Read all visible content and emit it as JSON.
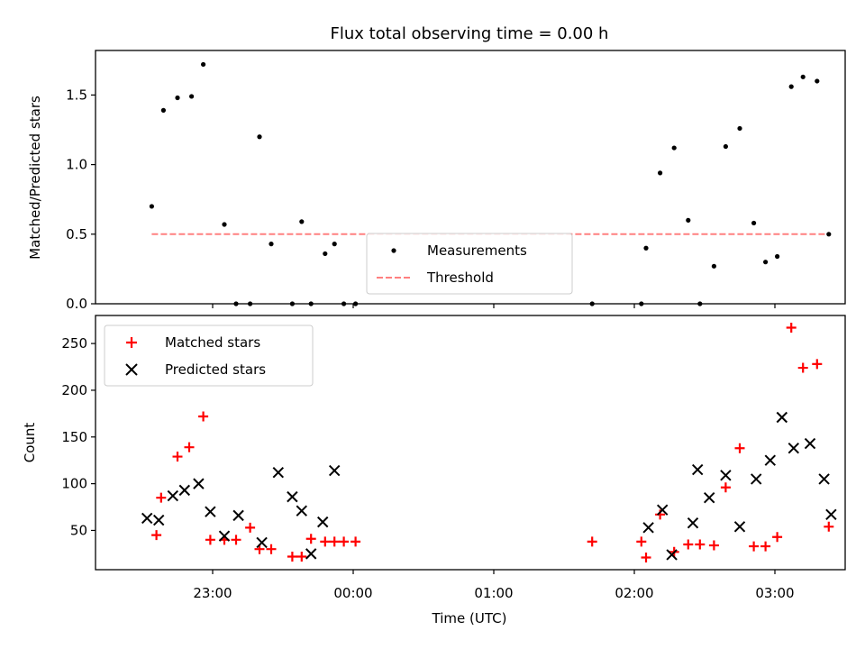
{
  "chart_data": [
    {
      "type": "scatter",
      "title": "Flux total observing time = 0.00 h",
      "xlabel": "",
      "ylabel": "Matched/Predicted stars",
      "ylim": [
        0,
        1.82
      ],
      "yticks": [
        "0.0",
        "0.5",
        "1.0",
        "1.5"
      ],
      "ytick_values": [
        0,
        0.5,
        1.0,
        1.5
      ],
      "legend": {
        "placement": "lower-center",
        "entries": [
          "Measurements",
          "Threshold"
        ]
      },
      "series": [
        {
          "name": "Measurements",
          "color": "#000000",
          "marker": "dot",
          "x": [
            "22:34",
            "22:39",
            "22:45",
            "22:51",
            "22:56",
            "23:05",
            "23:10",
            "23:16",
            "23:20",
            "23:25",
            "23:34",
            "23:38",
            "23:42",
            "23:48",
            "23:52",
            "23:56",
            "00:01",
            "01:42",
            "02:03",
            "02:05",
            "02:11",
            "02:17",
            "02:23",
            "02:28",
            "02:34",
            "02:39",
            "02:45",
            "02:51",
            "02:56",
            "03:01",
            "03:07",
            "03:12",
            "03:18",
            "03:23"
          ],
          "y": [
            0.7,
            1.39,
            1.48,
            1.49,
            1.72,
            0.57,
            0.0,
            0.0,
            1.2,
            0.43,
            0.0,
            0.59,
            0.0,
            0.36,
            0.43,
            0.0,
            0.0,
            0.0,
            0.0,
            0.4,
            0.94,
            1.12,
            0.6,
            0.0,
            0.27,
            1.13,
            1.26,
            0.58,
            0.3,
            0.34,
            1.56,
            1.63,
            1.6,
            0.5
          ]
        },
        {
          "name": "Threshold",
          "color": "#ff8080",
          "style": "dashed line",
          "x": [
            "22:34",
            "03:23"
          ],
          "y": [
            0.5,
            0.5
          ]
        }
      ]
    },
    {
      "type": "scatter",
      "title": "",
      "xlabel": "Time (UTC)",
      "ylabel": "Count",
      "ylim": [
        8,
        280
      ],
      "xlim": [
        "22:10",
        "03:30"
      ],
      "xticks": [
        "23:00",
        "00:00",
        "01:00",
        "02:00",
        "03:00"
      ],
      "yticks": [
        "50",
        "100",
        "150",
        "200",
        "250"
      ],
      "ytick_values": [
        50,
        100,
        150,
        200,
        250
      ],
      "legend": {
        "placement": "upper-left",
        "entries": [
          "Matched stars",
          "Predicted stars"
        ]
      },
      "series": [
        {
          "name": "Matched stars",
          "color": "#ff0000",
          "marker": "plus",
          "x": [
            "22:36",
            "22:38",
            "22:45",
            "22:50",
            "22:56",
            "22:59",
            "23:05",
            "23:10",
            "23:16",
            "23:20",
            "23:25",
            "23:34",
            "23:38",
            "23:42",
            "23:48",
            "23:52",
            "23:56",
            "00:01",
            "01:42",
            "02:03",
            "02:05",
            "02:11",
            "02:17",
            "02:23",
            "02:28",
            "02:34",
            "02:39",
            "02:45",
            "02:51",
            "02:56",
            "03:01",
            "03:07",
            "03:12",
            "03:18",
            "03:23"
          ],
          "y": [
            45,
            85,
            129,
            139,
            172,
            40,
            40,
            40,
            53,
            30,
            30,
            22,
            22,
            41,
            38,
            38,
            38,
            38,
            38,
            38,
            21,
            67,
            27,
            35,
            35,
            34,
            96,
            138,
            33,
            33,
            43,
            267,
            224,
            228,
            54
          ]
        },
        {
          "name": "Predicted stars",
          "color": "#000000",
          "marker": "x",
          "x": [
            "22:32",
            "22:37",
            "22:43",
            "22:48",
            "22:54",
            "22:59",
            "23:05",
            "23:11",
            "23:21",
            "23:28",
            "23:34",
            "23:38",
            "23:42",
            "23:47",
            "23:52",
            "02:06",
            "02:12",
            "02:16",
            "02:25",
            "02:27",
            "02:32",
            "02:39",
            "02:45",
            "02:52",
            "02:58",
            "03:03",
            "03:08",
            "03:15",
            "03:21",
            "03:24"
          ],
          "y": [
            63,
            61,
            87,
            93,
            100,
            70,
            44,
            66,
            37,
            112,
            86,
            71,
            25,
            59,
            114,
            53,
            72,
            24,
            58,
            115,
            85,
            109,
            54,
            105,
            125,
            171,
            138,
            143,
            105,
            67
          ]
        }
      ]
    }
  ],
  "layout_frame": {
    "legend_labels": {
      "measurements": "Measurements",
      "threshold": "Threshold",
      "matched": "Matched stars",
      "predicted": "Predicted stars"
    }
  }
}
